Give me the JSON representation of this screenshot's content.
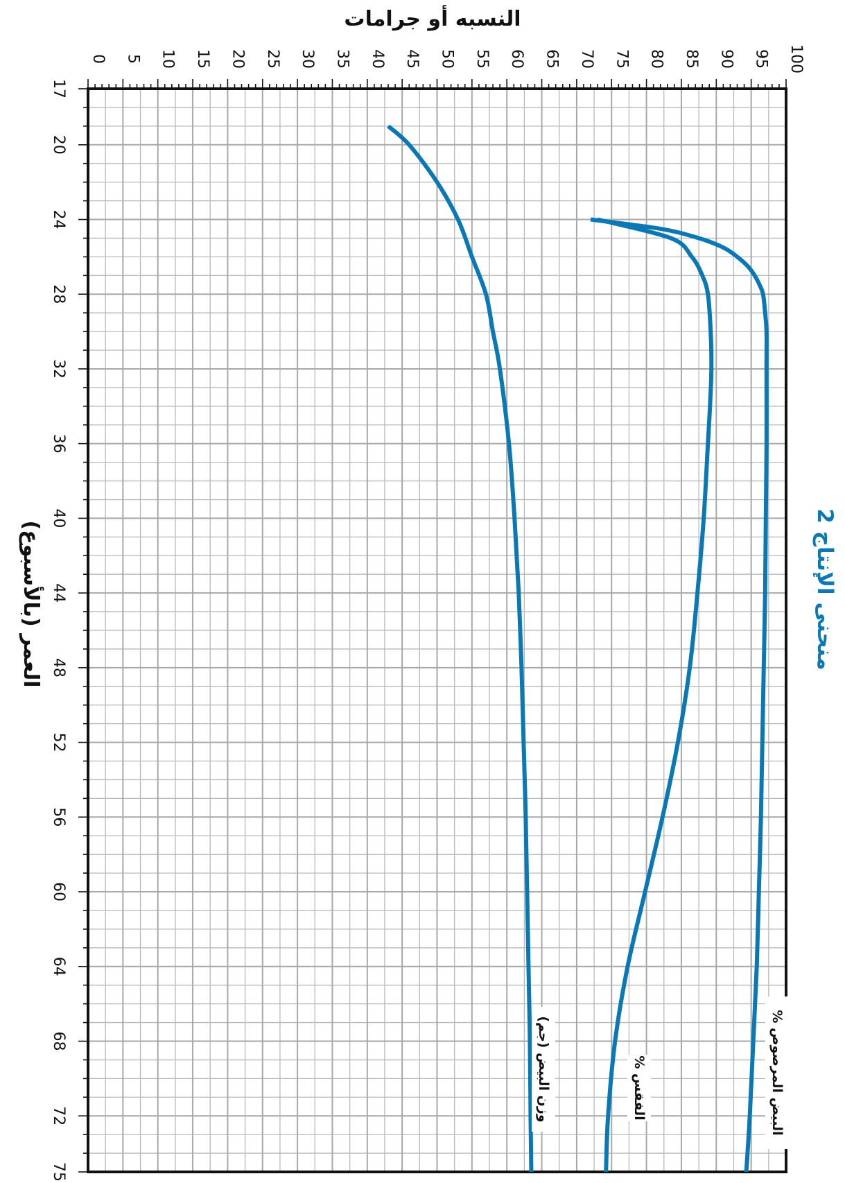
{
  "chart_data": {
    "type": "line",
    "title": "منحنى الإنتاج 2",
    "xlabel": "العمر (بالأسبوع)",
    "ylabel": "النسبه أو جرامات",
    "xlim": [
      17,
      75
    ],
    "ylim": [
      0,
      100
    ],
    "x_ticks": [
      17,
      20,
      24,
      28,
      32,
      36,
      40,
      44,
      48,
      52,
      56,
      60,
      64,
      68,
      72,
      75
    ],
    "y_ticks": [
      0,
      5,
      10,
      15,
      20,
      25,
      30,
      35,
      40,
      45,
      50,
      55,
      60,
      65,
      70,
      75,
      80,
      85,
      90,
      95,
      100
    ],
    "grid": true,
    "orientation": "rotated-90-clockwise",
    "series": [
      {
        "name": "% البيض المرصوص",
        "color": "#0a78b5",
        "x": [
          24,
          24.5,
          25,
          25.5,
          26,
          26.5,
          27,
          27.5,
          28,
          29,
          30,
          32,
          36,
          40,
          44,
          48,
          52,
          56,
          60,
          64,
          68,
          72,
          75
        ],
        "y": [
          72,
          82,
          87.5,
          91,
          93,
          94.5,
          95.5,
          96.2,
          96.7,
          97.0,
          97.2,
          97.2,
          97.2,
          97.1,
          97.0,
          96.8,
          96.6,
          96.4,
          96.1,
          95.8,
          95.3,
          94.8,
          94.3
        ]
      },
      {
        "name": "% الفقس",
        "color": "#0a78b5",
        "x": [
          24,
          25,
          26,
          27,
          28,
          30,
          32,
          34,
          36,
          40,
          44,
          48,
          52,
          56,
          60,
          64,
          68,
          72,
          75
        ],
        "y": [
          73,
          83.5,
          86.5,
          88,
          88.8,
          89.2,
          89.3,
          89.1,
          88.8,
          88.2,
          87.3,
          86.2,
          84.5,
          82.3,
          79.8,
          77.3,
          75.5,
          74.5,
          74.2
        ]
      },
      {
        "name": "وزن البيض (جم)",
        "color": "#0a78b5",
        "x": [
          19,
          20,
          22,
          24,
          26,
          28,
          30,
          32,
          36,
          40,
          44,
          48,
          52,
          56,
          60,
          64,
          68,
          72,
          75
        ],
        "y": [
          43,
          46,
          50,
          53,
          55,
          57,
          58,
          59,
          60.3,
          61.1,
          61.7,
          62.1,
          62.4,
          62.7,
          62.9,
          63.1,
          63.3,
          63.4,
          63.5
        ]
      }
    ]
  }
}
